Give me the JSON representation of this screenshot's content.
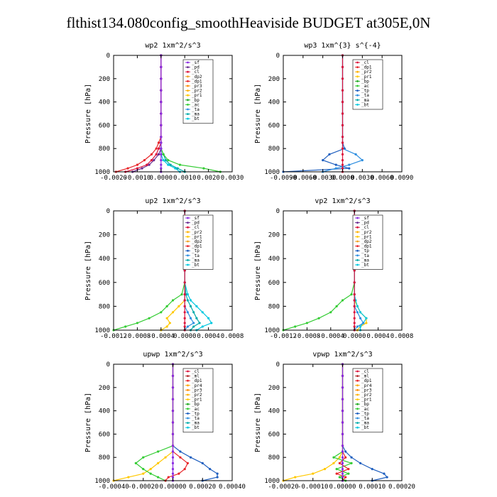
{
  "title": "flthist134.080config_smoothHeaviside  BUDGET at305E,0N",
  "colors": {
    "sf": "#8a2be2",
    "pd": "#6a2c91",
    "cl": "#dc143c",
    "ml": "#b22222",
    "dp1": "#e8262a",
    "dp2": "#f0a020",
    "dp3": "#f5c400",
    "dp4": "#ff1493",
    "pr1": "#ffc800",
    "pr2": "#ffb000",
    "pr3": "#ff8c00",
    "pr4": "#ffa500",
    "bp": "#22aa22",
    "ac": "#33cc33",
    "tp": "#1f5fbf",
    "ta": "#2f8fe0",
    "ma": "#00aaaa",
    "bt": "#00c8e0"
  },
  "chart_data": [
    {
      "type": "line",
      "title": "wp2  1xm^2/s^3",
      "ylabel": "Pressure [hPa]",
      "xlim": [
        -0.002,
        0.003
      ],
      "ylim": [
        1000,
        0
      ],
      "xticks": [
        "-0.0020",
        "-0.0010",
        "0.0000",
        "0.0010",
        "0.0020",
        "0.0030"
      ],
      "xtick_values": [
        -0.002,
        -0.001,
        0,
        0.001,
        0.002,
        0.003
      ],
      "yticks": [
        "0",
        "200",
        "400",
        "600",
        "800",
        "1000"
      ],
      "legend": [
        "_sf",
        "_pd",
        "_cl",
        "_dp2",
        "_dp1",
        "_pr3",
        "_pr2",
        "_pr1",
        "_bp",
        "_ac",
        "_ta",
        "_ma",
        "_bt"
      ],
      "levels": [
        0,
        100,
        200,
        300,
        400,
        500,
        600,
        700,
        750,
        800,
        850,
        900,
        940,
        970,
        1000
      ],
      "series": [
        {
          "name": "_bt",
          "color": "#00c8e0",
          "values": [
            0,
            0,
            0,
            0,
            0,
            0,
            0,
            0,
            0,
            0,
            0,
            0.0001,
            0.0003,
            0.0006,
            0.0008
          ]
        },
        {
          "name": "_ma",
          "color": "#00aaaa",
          "values": [
            0,
            0,
            0,
            0,
            0,
            0,
            0,
            0,
            0,
            0,
            0.0001,
            0.0002,
            0.0004,
            0.0007,
            0.001
          ]
        },
        {
          "name": "_ac",
          "color": "#33cc33",
          "values": [
            0,
            0,
            0,
            0,
            0,
            0,
            0,
            0,
            0,
            0,
            0.0001,
            0.0003,
            0.0008,
            0.0018,
            0.0025
          ]
        },
        {
          "name": "_dp1",
          "color": "#e8262a",
          "values": [
            0,
            0,
            0,
            0,
            0,
            0,
            0,
            0,
            -0.0001,
            -0.0002,
            -0.0004,
            -0.0007,
            -0.001,
            -0.0014,
            -0.0019
          ]
        },
        {
          "name": "_pd",
          "color": "#6a2c91",
          "values": [
            0,
            0,
            0,
            0,
            0,
            0,
            0,
            0,
            0,
            0,
            -0.0001,
            -0.0003,
            -0.0005,
            -0.0008,
            -0.0012
          ]
        },
        {
          "name": "_cl",
          "color": "#dc143c",
          "values": [
            0,
            0,
            0,
            0,
            0,
            0,
            0,
            0,
            0,
            -0.0001,
            -0.0002,
            -0.0004,
            -0.0006,
            -0.001,
            -0.0015
          ]
        },
        {
          "name": "_sf",
          "color": "#8a2be2",
          "values": [
            0,
            0,
            0,
            0,
            0,
            0,
            0,
            0,
            0,
            0,
            0,
            0,
            0,
            0,
            0
          ]
        }
      ]
    },
    {
      "type": "line",
      "title": "wp3  1xm^{3} s^{-4}",
      "ylabel": "Pressure [hPa]",
      "xlim": [
        -0.009,
        0.009
      ],
      "ylim": [
        1000,
        0
      ],
      "xticks": [
        "-0.0090",
        "-0.0060",
        "-0.0030",
        "0.0000",
        "0.0030",
        "0.0060",
        "0.0090"
      ],
      "xtick_values": [
        -0.009,
        -0.006,
        -0.003,
        0,
        0.003,
        0.006,
        0.009
      ],
      "yticks": [
        "0",
        "200",
        "400",
        "600",
        "800",
        "1000"
      ],
      "legend": [
        "_cl",
        "_dp1",
        "_pr2",
        "_pr1",
        "_bp",
        "_ac",
        "_tp",
        "_ta",
        "_ma",
        "_bt"
      ],
      "levels": [
        0,
        100,
        200,
        300,
        400,
        500,
        600,
        700,
        750,
        800,
        850,
        900,
        940,
        970,
        1000
      ],
      "series": [
        {
          "name": "_tp",
          "color": "#1f5fbf",
          "values": [
            0,
            0,
            0,
            0,
            0,
            0,
            0,
            0,
            0,
            0.0003,
            -0.002,
            -0.003,
            -0.001,
            0.001,
            -0.009
          ]
        },
        {
          "name": "_ta",
          "color": "#2f8fe0",
          "values": [
            0,
            0,
            0,
            0,
            0,
            0,
            0,
            0,
            0,
            0,
            0.002,
            0.003,
            0.001,
            -0.001,
            -0.003
          ]
        },
        {
          "name": "_cl",
          "color": "#dc143c",
          "values": [
            0,
            0,
            0,
            0,
            0,
            0,
            0,
            0,
            0,
            0,
            0,
            0,
            0,
            0,
            0
          ]
        }
      ]
    },
    {
      "type": "line",
      "title": "up2  1xm^2/s^3",
      "ylabel": "Pressure [hPa]",
      "xlim": [
        -0.0012,
        0.0008
      ],
      "ylim": [
        1000,
        0
      ],
      "xticks": [
        "-0.0012",
        "-0.0008",
        "-0.0004",
        "0.0000",
        "0.0004",
        "0.0008"
      ],
      "xtick_values": [
        -0.0012,
        -0.0008,
        -0.0004,
        0,
        0.0004,
        0.0008
      ],
      "yticks": [
        "0",
        "200",
        "400",
        "600",
        "800",
        "1000"
      ],
      "legend": [
        "_sf",
        "_pd",
        "_cl",
        "_pr2",
        "_pr1",
        "_dp2",
        "_dp1",
        "_tp",
        "_ta",
        "_ma",
        "_bt"
      ],
      "levels": [
        0,
        100,
        200,
        300,
        400,
        500,
        600,
        700,
        750,
        800,
        850,
        900,
        940,
        970,
        1000
      ],
      "series": [
        {
          "name": "_dp1",
          "color": "#33cc33",
          "values": [
            0,
            0,
            0,
            0,
            0,
            0,
            0,
            -5e-05,
            -0.0002,
            -0.0003,
            -0.0004,
            -0.0006,
            -0.0008,
            -0.001,
            -0.0012
          ]
        },
        {
          "name": "_pr1",
          "color": "#ffc800",
          "values": [
            0,
            0,
            0,
            0,
            0,
            0,
            0,
            0,
            0,
            -0.0001,
            -0.0002,
            -0.0003,
            -0.00025,
            -0.0003,
            -0.0004
          ]
        },
        {
          "name": "_bt",
          "color": "#00c8e0",
          "values": [
            0,
            0,
            0,
            0,
            0,
            0,
            0,
            5e-05,
            0.0001,
            0.0002,
            0.0003,
            0.0004,
            0.00045,
            0.0003,
            0.0002
          ]
        },
        {
          "name": "_ma",
          "color": "#00aaaa",
          "values": [
            0,
            0,
            0,
            0,
            0,
            0,
            0,
            2e-05,
            5e-05,
            0.0001,
            0.00015,
            0.0002,
            0.00025,
            0.00015,
            0.0001
          ]
        },
        {
          "name": "_ta",
          "color": "#2f8fe0",
          "values": [
            0,
            0,
            0,
            0,
            0,
            0,
            0,
            0,
            0,
            0,
            5e-05,
            0.0001,
            0.00015,
            5e-05,
            0
          ]
        },
        {
          "name": "_cl",
          "color": "#dc143c",
          "values": [
            0,
            0,
            0,
            0,
            0,
            0,
            0,
            0,
            0,
            0,
            0,
            0,
            0,
            0,
            0
          ]
        }
      ]
    },
    {
      "type": "line",
      "title": "vp2  1xm^2/s^3",
      "ylabel": "Pressure [hPa]",
      "xlim": [
        -0.0012,
        0.0008
      ],
      "ylim": [
        1000,
        0
      ],
      "xticks": [
        "-0.0012",
        "-0.0008",
        "-0.0004",
        "0.0000",
        "0.0004",
        "0.0008"
      ],
      "xtick_values": [
        -0.0012,
        -0.0008,
        -0.0004,
        0,
        0.0004,
        0.0008
      ],
      "yticks": [
        "0",
        "200",
        "400",
        "600",
        "800",
        "1000"
      ],
      "legend": [
        "_sf",
        "_pd",
        "_cl",
        "_pr2",
        "_pr1",
        "_dp2",
        "_dp1",
        "_tp",
        "_ta",
        "_ma",
        "_bt"
      ],
      "levels": [
        0,
        100,
        200,
        300,
        400,
        500,
        600,
        700,
        750,
        800,
        850,
        900,
        940,
        970,
        1000
      ],
      "series": [
        {
          "name": "_dp1",
          "color": "#33cc33",
          "values": [
            0,
            0,
            0,
            0,
            0,
            0,
            0,
            -5e-05,
            -0.0002,
            -0.0003,
            -0.0004,
            -0.0006,
            -0.0008,
            -0.001,
            -0.0012
          ]
        },
        {
          "name": "_pr1",
          "color": "#ffc800",
          "values": [
            0,
            0,
            0,
            0,
            0,
            0,
            0,
            0,
            0,
            5e-05,
            0.0001,
            0.0002,
            0.0002,
            0.0001,
            5e-05
          ]
        },
        {
          "name": "_bt",
          "color": "#00c8e0",
          "values": [
            0,
            0,
            0,
            0,
            0,
            0,
            0,
            0,
            2e-05,
            5e-05,
            0.0001,
            0.0002,
            0.00015,
            0.0001,
            0.0001
          ]
        },
        {
          "name": "_ta",
          "color": "#2f8fe0",
          "values": [
            0,
            0,
            0,
            0,
            0,
            0,
            0,
            0,
            0,
            0,
            5e-05,
            0.0001,
            0.00015,
            5e-05,
            0
          ]
        },
        {
          "name": "_cl",
          "color": "#dc143c",
          "values": [
            0,
            0,
            0,
            0,
            0,
            0,
            0,
            0,
            0,
            0,
            0,
            0,
            0,
            0,
            0
          ]
        }
      ]
    },
    {
      "type": "line",
      "title": "upwp  1xm^2/s^3",
      "ylabel": "Pressure [hPa]",
      "xlim": [
        -0.0004,
        0.0004
      ],
      "ylim": [
        1000,
        0
      ],
      "xticks": [
        "-0.00040",
        "-0.00020",
        "0.00000",
        "0.00020",
        "0.00040"
      ],
      "xtick_values": [
        -0.0004,
        -0.0002,
        0,
        0.0002,
        0.0004
      ],
      "yticks": [
        "0",
        "200",
        "400",
        "600",
        "800",
        "1000"
      ],
      "legend": [
        "_cl",
        "_ml",
        "_dp1",
        "_pr4",
        "_pr3",
        "_pr2",
        "_pr1",
        "_bp",
        "_ac",
        "_tp",
        "_ta",
        "_ma",
        "_bt"
      ],
      "levels": [
        0,
        100,
        200,
        300,
        400,
        500,
        600,
        700,
        750,
        800,
        850,
        900,
        940,
        970,
        1000
      ],
      "series": [
        {
          "name": "_tp",
          "color": "#1f5fbf",
          "values": [
            0,
            0,
            0,
            0,
            0,
            0,
            0,
            0,
            5e-05,
            0.00012,
            0.0002,
            0.00025,
            0.0003,
            0.0003,
            0.0002
          ]
        },
        {
          "name": "_pr1",
          "color": "#ffc800",
          "values": [
            0,
            0,
            0,
            0,
            0,
            0,
            0,
            0,
            0,
            -5e-05,
            -0.0001,
            -0.00015,
            -0.0002,
            -0.0003,
            -0.0004
          ]
        },
        {
          "name": "_ac",
          "color": "#33cc33",
          "values": [
            0,
            0,
            0,
            0,
            0,
            0,
            0,
            0,
            -0.0001,
            -0.0002,
            -0.00025,
            -0.0002,
            -0.00015,
            -0.0001,
            -5e-05
          ]
        },
        {
          "name": "_dp1",
          "color": "#e8262a",
          "values": [
            0,
            0,
            0,
            0,
            0,
            0,
            0,
            0,
            0,
            5e-05,
            0.0001,
            8e-05,
            4e-05,
            -3e-05,
            -5e-05
          ]
        },
        {
          "name": "_cl",
          "color": "#8a2be2",
          "values": [
            0,
            0,
            0,
            0,
            0,
            0,
            0,
            0,
            0,
            0,
            0,
            0,
            0,
            0,
            0
          ]
        }
      ]
    },
    {
      "type": "line",
      "title": "vpwp  1xm^2/s^3",
      "ylabel": "Pressure [hPa]",
      "xlim": [
        -0.0002,
        0.0002
      ],
      "ylim": [
        1000,
        0
      ],
      "xticks": [
        "-0.00020",
        "-0.00010",
        "0.00000",
        "0.00010",
        "0.00020"
      ],
      "xtick_values": [
        -0.0002,
        -0.0001,
        0,
        0.0001,
        0.0002
      ],
      "yticks": [
        "0",
        "200",
        "400",
        "600",
        "800",
        "1000"
      ],
      "legend": [
        "_cl",
        "_ml",
        "_dp1",
        "_pr4",
        "_pr3",
        "_pr2",
        "_pr1",
        "_bp",
        "_ac",
        "_tp",
        "_ta",
        "_ma",
        "_bt"
      ],
      "levels": [
        0,
        100,
        200,
        300,
        400,
        500,
        600,
        700,
        750,
        800,
        850,
        900,
        940,
        970,
        1000
      ],
      "series": [
        {
          "name": "_tp",
          "color": "#1f5fbf",
          "values": [
            0,
            0,
            0,
            0,
            0,
            0,
            0,
            0,
            1e-05,
            3e-05,
            6e-05,
            0.0001,
            0.00014,
            0.00015,
            0.0001
          ]
        },
        {
          "name": "_pr1",
          "color": "#ffc800",
          "values": [
            0,
            0,
            0,
            0,
            0,
            0,
            0,
            0,
            0,
            -1e-05,
            -3e-05,
            -6e-05,
            -0.0001,
            -0.00016,
            -0.0002
          ]
        },
        {
          "name": "_ac",
          "color": "#33cc33",
          "values": [
            0,
            0,
            0,
            0,
            0,
            0,
            0,
            0,
            0,
            -3e-05,
            3e-05,
            -2e-05,
            2e-05,
            -1e-05,
            1e-05
          ]
        },
        {
          "name": "_dp1",
          "color": "#e8262a",
          "values": [
            0,
            0,
            0,
            0,
            0,
            0,
            0,
            0,
            0,
            1e-05,
            -1e-05,
            2e-05,
            -2e-05,
            1e-05,
            0
          ]
        },
        {
          "name": "_cl",
          "color": "#8a2be2",
          "values": [
            0,
            0,
            0,
            0,
            0,
            0,
            0,
            0,
            0,
            0,
            0,
            0,
            0,
            0,
            0
          ]
        }
      ]
    }
  ]
}
